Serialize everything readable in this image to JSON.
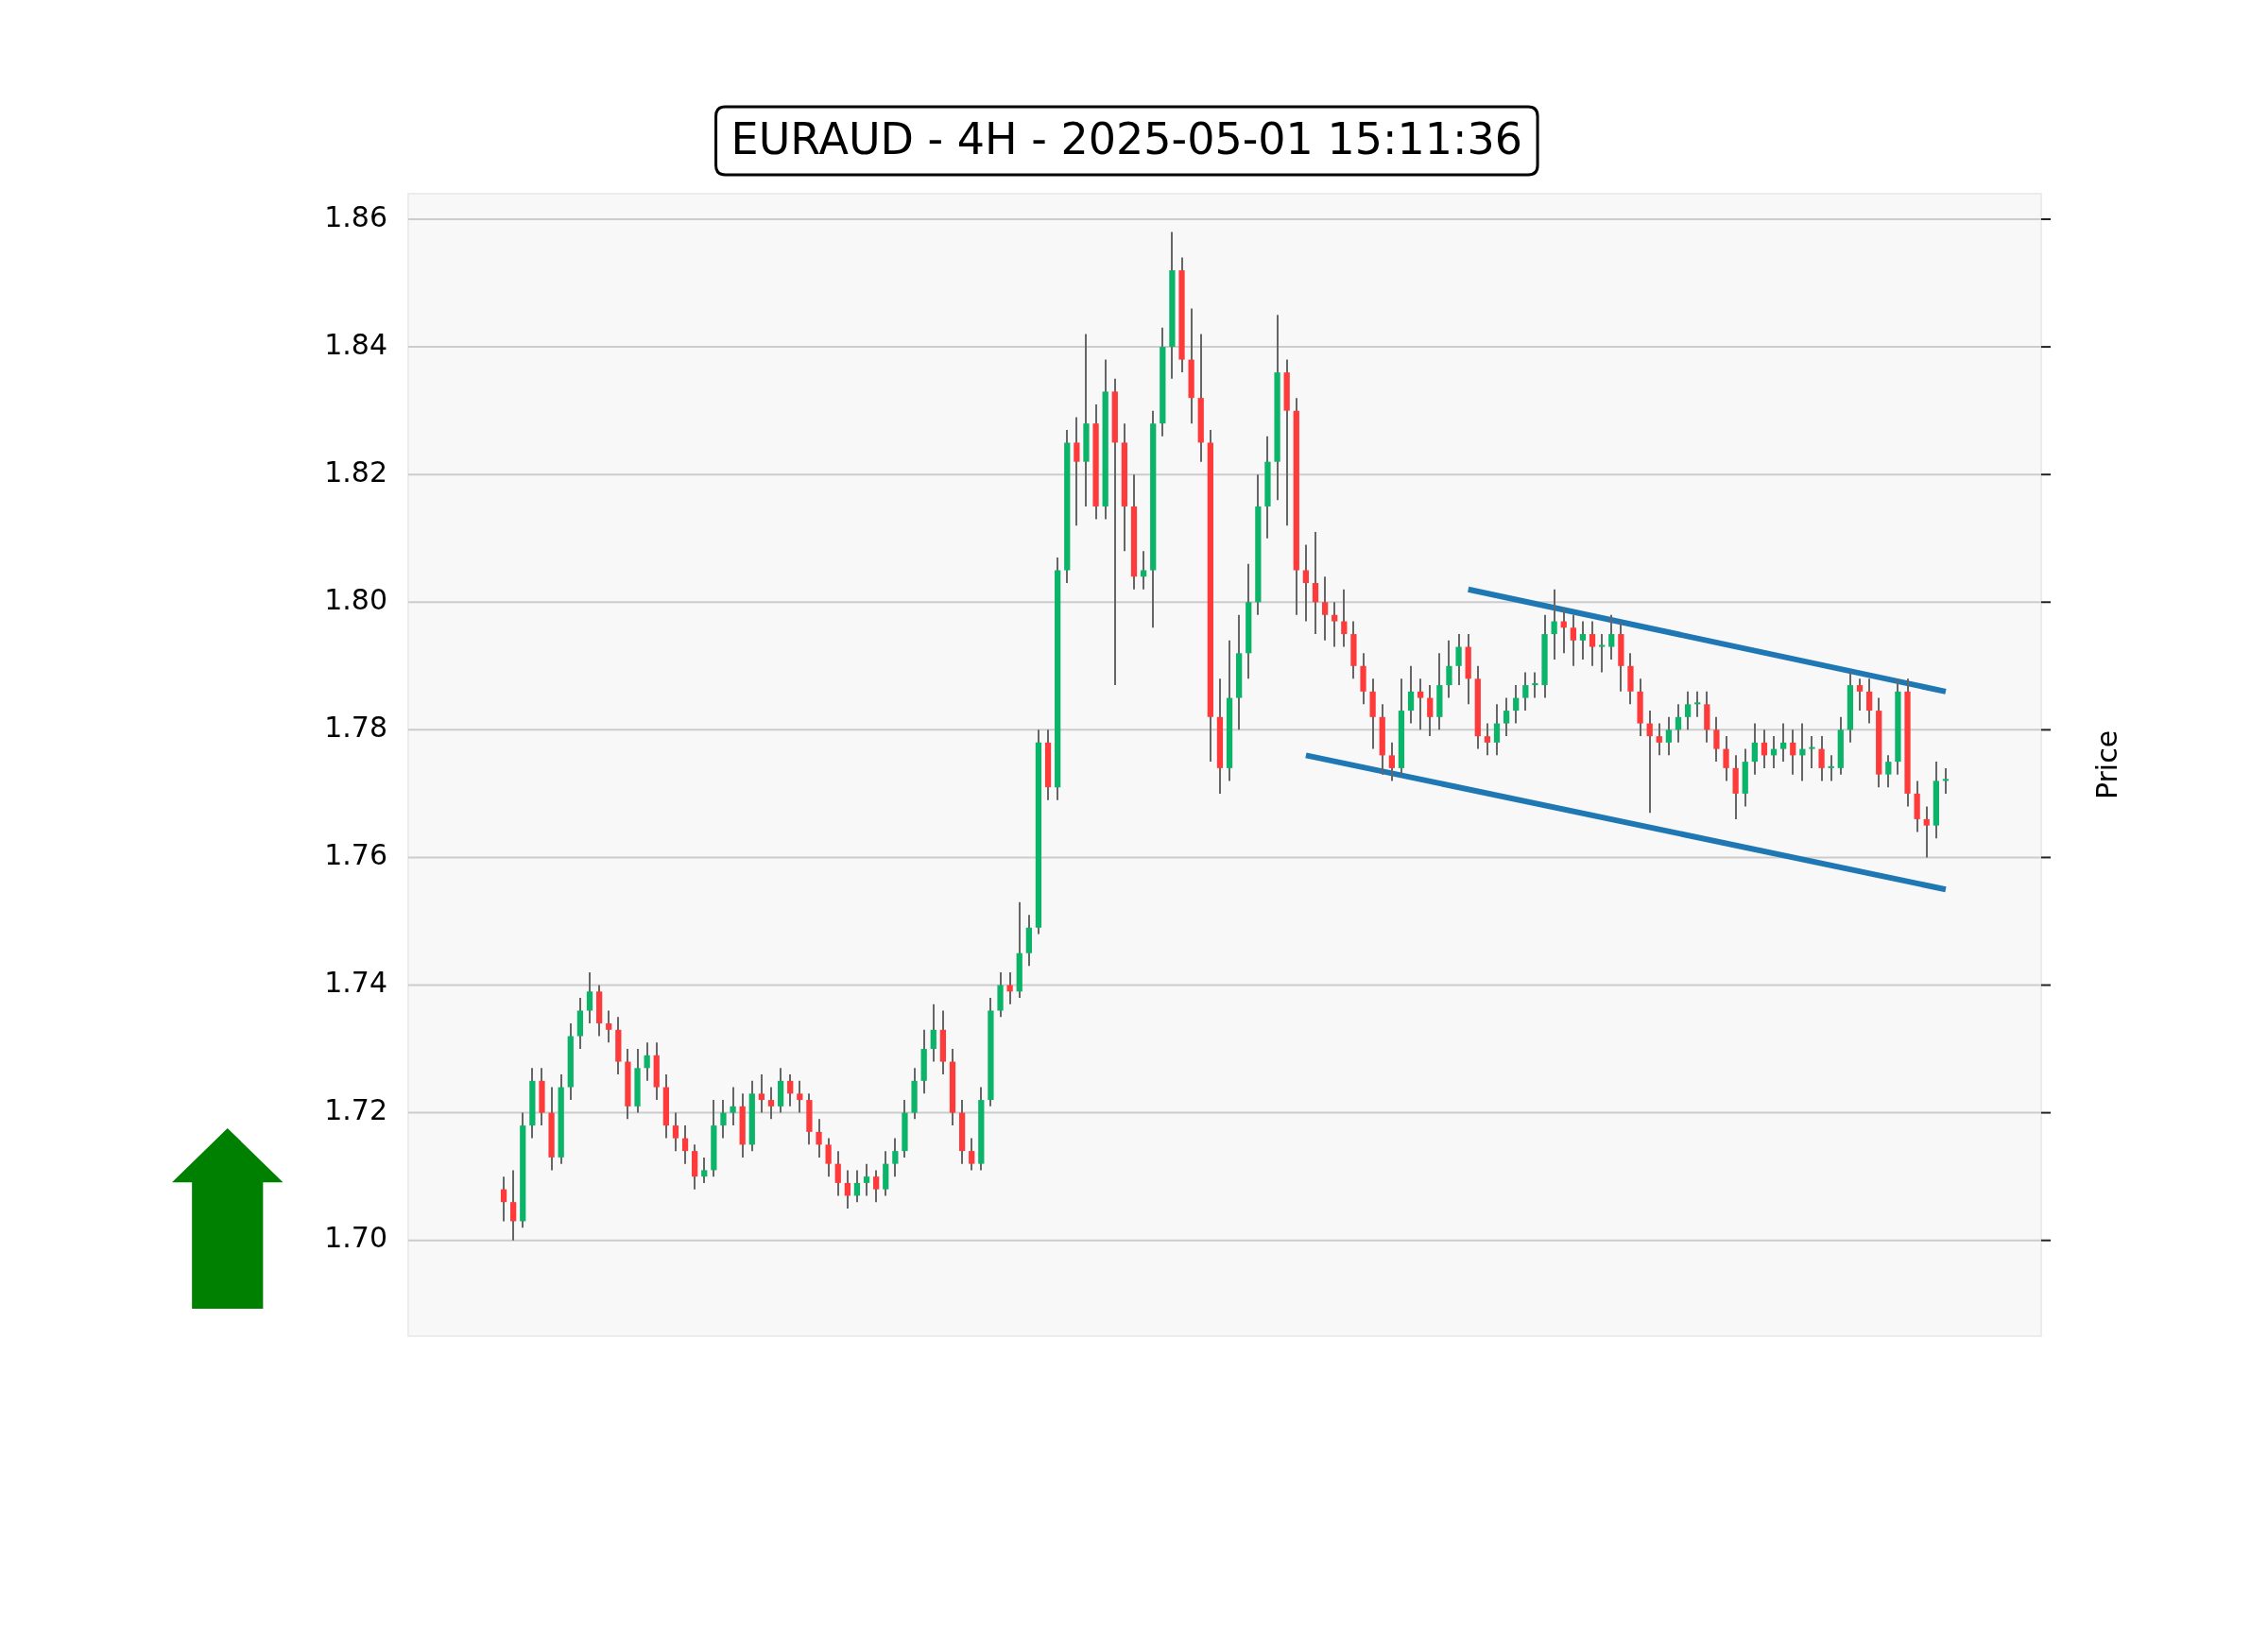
{
  "chart_data": {
    "type": "candlestick",
    "title": "EURAUD - 4H - 2025-05-01 15:11:36",
    "ylabel": "Price",
    "categories": [
      null,
      null,
      null,
      null,
      null,
      null,
      null,
      null,
      null,
      null,
      null,
      null,
      null,
      null,
      null,
      null,
      null,
      null,
      null,
      null,
      null,
      null,
      null,
      null,
      null,
      null,
      null,
      null,
      null,
      null,
      null,
      null,
      null,
      null,
      null,
      null,
      null,
      null,
      null,
      null,
      null,
      null,
      null,
      null,
      null,
      null,
      null,
      null,
      null,
      null,
      null,
      null,
      null,
      null,
      null,
      null,
      null,
      null,
      null,
      null,
      null,
      null,
      null,
      null,
      null,
      null,
      null,
      null,
      null,
      null,
      null,
      null,
      null,
      null,
      null,
      null,
      null,
      null,
      null,
      null,
      null,
      null,
      null,
      null,
      null,
      null,
      null,
      null,
      null,
      null,
      null,
      null,
      null,
      null,
      null,
      null,
      null,
      null,
      null,
      null,
      null,
      null,
      null,
      null,
      null,
      null,
      null,
      null,
      null,
      null,
      null,
      null,
      null,
      null,
      null,
      null,
      null,
      null,
      null,
      null,
      null,
      null,
      null,
      null,
      null,
      null,
      null,
      null,
      null,
      null,
      null,
      null,
      null,
      null,
      null,
      null,
      null,
      null,
      null,
      null,
      null,
      null,
      null,
      null,
      null,
      null,
      null,
      null,
      null,
      null,
      null,
      null
    ],
    "ohlc": [
      [
        1.708,
        1.71,
        1.703,
        1.706
      ],
      [
        1.706,
        1.711,
        1.7,
        1.703
      ],
      [
        1.703,
        1.72,
        1.702,
        1.718
      ],
      [
        1.718,
        1.727,
        1.716,
        1.725
      ],
      [
        1.725,
        1.727,
        1.718,
        1.72
      ],
      [
        1.72,
        1.724,
        1.711,
        1.713
      ],
      [
        1.713,
        1.726,
        1.712,
        1.724
      ],
      [
        1.724,
        1.734,
        1.722,
        1.732
      ],
      [
        1.732,
        1.738,
        1.73,
        1.736
      ],
      [
        1.736,
        1.742,
        1.734,
        1.739
      ],
      [
        1.739,
        1.74,
        1.732,
        1.734
      ],
      [
        1.734,
        1.736,
        1.731,
        1.733
      ],
      [
        1.733,
        1.735,
        1.726,
        1.728
      ],
      [
        1.728,
        1.73,
        1.719,
        1.721
      ],
      [
        1.721,
        1.73,
        1.72,
        1.727
      ],
      [
        1.727,
        1.731,
        1.725,
        1.729
      ],
      [
        1.729,
        1.731,
        1.722,
        1.724
      ],
      [
        1.724,
        1.726,
        1.716,
        1.718
      ],
      [
        1.718,
        1.72,
        1.714,
        1.716
      ],
      [
        1.716,
        1.718,
        1.712,
        1.714
      ],
      [
        1.714,
        1.715,
        1.708,
        1.71
      ],
      [
        1.71,
        1.713,
        1.709,
        1.711
      ],
      [
        1.711,
        1.722,
        1.71,
        1.718
      ],
      [
        1.718,
        1.722,
        1.716,
        1.72
      ],
      [
        1.72,
        1.724,
        1.718,
        1.721
      ],
      [
        1.721,
        1.723,
        1.713,
        1.715
      ],
      [
        1.715,
        1.725,
        1.714,
        1.723
      ],
      [
        1.723,
        1.726,
        1.72,
        1.722
      ],
      [
        1.722,
        1.724,
        1.719,
        1.721
      ],
      [
        1.721,
        1.727,
        1.72,
        1.725
      ],
      [
        1.725,
        1.726,
        1.721,
        1.723
      ],
      [
        1.723,
        1.725,
        1.72,
        1.722
      ],
      [
        1.722,
        1.723,
        1.715,
        1.717
      ],
      [
        1.717,
        1.719,
        1.713,
        1.715
      ],
      [
        1.715,
        1.716,
        1.71,
        1.712
      ],
      [
        1.712,
        1.714,
        1.707,
        1.709
      ],
      [
        1.709,
        1.711,
        1.705,
        1.707
      ],
      [
        1.707,
        1.711,
        1.706,
        1.709
      ],
      [
        1.709,
        1.712,
        1.707,
        1.71
      ],
      [
        1.71,
        1.711,
        1.706,
        1.708
      ],
      [
        1.708,
        1.714,
        1.707,
        1.712
      ],
      [
        1.712,
        1.716,
        1.71,
        1.714
      ],
      [
        1.714,
        1.722,
        1.713,
        1.72
      ],
      [
        1.72,
        1.727,
        1.719,
        1.725
      ],
      [
        1.725,
        1.733,
        1.723,
        1.73
      ],
      [
        1.73,
        1.737,
        1.728,
        1.733
      ],
      [
        1.733,
        1.736,
        1.726,
        1.728
      ],
      [
        1.728,
        1.73,
        1.718,
        1.72
      ],
      [
        1.72,
        1.722,
        1.712,
        1.714
      ],
      [
        1.714,
        1.716,
        1.711,
        1.712
      ],
      [
        1.712,
        1.724,
        1.711,
        1.722
      ],
      [
        1.722,
        1.738,
        1.721,
        1.736
      ],
      [
        1.736,
        1.742,
        1.735,
        1.74
      ],
      [
        1.74,
        1.742,
        1.737,
        1.739
      ],
      [
        1.739,
        1.753,
        1.738,
        1.745
      ],
      [
        1.745,
        1.751,
        1.743,
        1.749
      ],
      [
        1.749,
        1.78,
        1.748,
        1.778
      ],
      [
        1.778,
        1.78,
        1.769,
        1.771
      ],
      [
        1.771,
        1.807,
        1.769,
        1.805
      ],
      [
        1.805,
        1.827,
        1.803,
        1.825
      ],
      [
        1.825,
        1.829,
        1.812,
        1.822
      ],
      [
        1.822,
        1.842,
        1.815,
        1.828
      ],
      [
        1.828,
        1.831,
        1.813,
        1.815
      ],
      [
        1.815,
        1.838,
        1.813,
        1.833
      ],
      [
        1.833,
        1.835,
        1.787,
        1.825
      ],
      [
        1.825,
        1.828,
        1.808,
        1.815
      ],
      [
        1.815,
        1.82,
        1.802,
        1.804
      ],
      [
        1.804,
        1.808,
        1.802,
        1.805
      ],
      [
        1.805,
        1.83,
        1.796,
        1.828
      ],
      [
        1.828,
        1.843,
        1.826,
        1.84
      ],
      [
        1.84,
        1.858,
        1.835,
        1.852
      ],
      [
        1.852,
        1.854,
        1.836,
        1.838
      ],
      [
        1.838,
        1.846,
        1.828,
        1.832
      ],
      [
        1.832,
        1.842,
        1.822,
        1.825
      ],
      [
        1.825,
        1.827,
        1.775,
        1.782
      ],
      [
        1.782,
        1.788,
        1.77,
        1.774
      ],
      [
        1.774,
        1.794,
        1.772,
        1.785
      ],
      [
        1.785,
        1.798,
        1.78,
        1.792
      ],
      [
        1.792,
        1.806,
        1.788,
        1.8
      ],
      [
        1.8,
        1.82,
        1.798,
        1.815
      ],
      [
        1.815,
        1.826,
        1.81,
        1.822
      ],
      [
        1.822,
        1.845,
        1.816,
        1.836
      ],
      [
        1.836,
        1.838,
        1.812,
        1.83
      ],
      [
        1.83,
        1.832,
        1.798,
        1.805
      ],
      [
        1.805,
        1.809,
        1.797,
        1.803
      ],
      [
        1.803,
        1.811,
        1.795,
        1.8
      ],
      [
        1.8,
        1.804,
        1.794,
        1.798
      ],
      [
        1.798,
        1.8,
        1.793,
        1.797
      ],
      [
        1.797,
        1.802,
        1.793,
        1.795
      ],
      [
        1.795,
        1.797,
        1.788,
        1.79
      ],
      [
        1.79,
        1.792,
        1.784,
        1.786
      ],
      [
        1.786,
        1.788,
        1.777,
        1.782
      ],
      [
        1.782,
        1.784,
        1.773,
        1.776
      ],
      [
        1.776,
        1.778,
        1.772,
        1.774
      ],
      [
        1.774,
        1.788,
        1.773,
        1.783
      ],
      [
        1.783,
        1.79,
        1.781,
        1.786
      ],
      [
        1.786,
        1.788,
        1.78,
        1.785
      ],
      [
        1.785,
        1.787,
        1.779,
        1.782
      ],
      [
        1.782,
        1.792,
        1.78,
        1.787
      ],
      [
        1.787,
        1.794,
        1.785,
        1.79
      ],
      [
        1.79,
        1.795,
        1.787,
        1.793
      ],
      [
        1.793,
        1.795,
        1.784,
        1.788
      ],
      [
        1.788,
        1.79,
        1.777,
        1.779
      ],
      [
        1.779,
        1.781,
        1.776,
        1.778
      ],
      [
        1.778,
        1.784,
        1.776,
        1.781
      ],
      [
        1.781,
        1.785,
        1.779,
        1.783
      ],
      [
        1.783,
        1.787,
        1.781,
        1.785
      ],
      [
        1.785,
        1.789,
        1.783,
        1.787
      ],
      [
        1.787,
        1.789,
        1.785,
        1.787
      ],
      [
        1.787,
        1.798,
        1.785,
        1.795
      ],
      [
        1.795,
        1.802,
        1.791,
        1.797
      ],
      [
        1.797,
        1.799,
        1.792,
        1.796
      ],
      [
        1.796,
        1.798,
        1.79,
        1.794
      ],
      [
        1.794,
        1.797,
        1.791,
        1.795
      ],
      [
        1.795,
        1.797,
        1.79,
        1.793
      ],
      [
        1.793,
        1.795,
        1.789,
        1.793
      ],
      [
        1.793,
        1.798,
        1.791,
        1.795
      ],
      [
        1.795,
        1.797,
        1.786,
        1.79
      ],
      [
        1.79,
        1.792,
        1.784,
        1.786
      ],
      [
        1.786,
        1.788,
        1.779,
        1.781
      ],
      [
        1.781,
        1.783,
        1.767,
        1.779
      ],
      [
        1.779,
        1.781,
        1.776,
        1.778
      ],
      [
        1.778,
        1.782,
        1.776,
        1.78
      ],
      [
        1.78,
        1.784,
        1.778,
        1.782
      ],
      [
        1.782,
        1.786,
        1.78,
        1.784
      ],
      [
        1.784,
        1.786,
        1.782,
        1.784
      ],
      [
        1.784,
        1.786,
        1.778,
        1.78
      ],
      [
        1.78,
        1.782,
        1.775,
        1.777
      ],
      [
        1.777,
        1.779,
        1.772,
        1.774
      ],
      [
        1.774,
        1.776,
        1.766,
        1.77
      ],
      [
        1.77,
        1.777,
        1.768,
        1.775
      ],
      [
        1.775,
        1.781,
        1.773,
        1.778
      ],
      [
        1.778,
        1.78,
        1.774,
        1.776
      ],
      [
        1.776,
        1.779,
        1.774,
        1.777
      ],
      [
        1.777,
        1.781,
        1.775,
        1.778
      ],
      [
        1.778,
        1.78,
        1.773,
        1.776
      ],
      [
        1.776,
        1.781,
        1.772,
        1.777
      ],
      [
        1.777,
        1.779,
        1.774,
        1.777
      ],
      [
        1.777,
        1.779,
        1.772,
        1.774
      ],
      [
        1.774,
        1.776,
        1.772,
        1.774
      ],
      [
        1.774,
        1.782,
        1.773,
        1.78
      ],
      [
        1.78,
        1.789,
        1.778,
        1.787
      ],
      [
        1.787,
        1.788,
        1.783,
        1.786
      ],
      [
        1.786,
        1.788,
        1.781,
        1.783
      ],
      [
        1.783,
        1.785,
        1.771,
        1.773
      ],
      [
        1.773,
        1.776,
        1.771,
        1.775
      ],
      [
        1.775,
        1.788,
        1.773,
        1.786
      ],
      [
        1.786,
        1.788,
        1.768,
        1.77
      ],
      [
        1.77,
        1.772,
        1.764,
        1.766
      ],
      [
        1.766,
        1.768,
        1.76,
        1.765
      ],
      [
        1.765,
        1.775,
        1.763,
        1.772
      ],
      [
        1.772,
        1.774,
        1.77,
        1.772
      ]
    ],
    "series": [
      {
        "type": "line",
        "color": "#1f77b4",
        "values": [
          null,
          null,
          null,
          null,
          null,
          null,
          null,
          null,
          null,
          null,
          null,
          null,
          null,
          null,
          null,
          null,
          null,
          null,
          null,
          null,
          null,
          null,
          null,
          null,
          null,
          null,
          null,
          null,
          null,
          null,
          null,
          null,
          null,
          null,
          null,
          null,
          null,
          null,
          null,
          null,
          null,
          null,
          null,
          null,
          null,
          null,
          null,
          null,
          null,
          null,
          null,
          null,
          null,
          null,
          null,
          null,
          null,
          null,
          null,
          null,
          null,
          null,
          null,
          null,
          null,
          null,
          null,
          null,
          null,
          null,
          null,
          null,
          null,
          null,
          null,
          null,
          null,
          null,
          null,
          null,
          null,
          null,
          null,
          null,
          null,
          null,
          null,
          null,
          null,
          null,
          null,
          null,
          null,
          null,
          null,
          null,
          null,
          null,
          null,
          null,
          null,
          1.802,
          null,
          null,
          null,
          null,
          null,
          null,
          null,
          null,
          null,
          null,
          null,
          null,
          null,
          null,
          null,
          null,
          null,
          null,
          null,
          null,
          null,
          null,
          null,
          null,
          null,
          null,
          null,
          null,
          null,
          null,
          null,
          null,
          null,
          null,
          null,
          null,
          null,
          null,
          null,
          null,
          null,
          null,
          null,
          null,
          null,
          null,
          null,
          null,
          null,
          1.786
        ]
      },
      {
        "type": "line",
        "color": "#1f77b4",
        "values": [
          null,
          null,
          null,
          null,
          null,
          null,
          null,
          null,
          null,
          null,
          null,
          null,
          null,
          null,
          null,
          null,
          null,
          null,
          null,
          null,
          null,
          null,
          null,
          null,
          null,
          null,
          null,
          null,
          null,
          null,
          null,
          null,
          null,
          null,
          null,
          null,
          null,
          null,
          null,
          null,
          null,
          null,
          null,
          null,
          null,
          null,
          null,
          null,
          null,
          null,
          null,
          null,
          null,
          null,
          null,
          null,
          null,
          null,
          null,
          null,
          null,
          null,
          null,
          null,
          null,
          null,
          null,
          null,
          null,
          null,
          null,
          null,
          null,
          null,
          null,
          null,
          null,
          null,
          null,
          null,
          null,
          null,
          null,
          null,
          1.776,
          null,
          null,
          null,
          null,
          null,
          null,
          null,
          null,
          null,
          null,
          null,
          null,
          null,
          null,
          null,
          null,
          null,
          null,
          null,
          null,
          null,
          null,
          null,
          null,
          null,
          null,
          null,
          null,
          null,
          null,
          null,
          null,
          null,
          null,
          null,
          null,
          null,
          null,
          null,
          null,
          null,
          null,
          null,
          null,
          null,
          null,
          null,
          null,
          null,
          null,
          null,
          null,
          null,
          null,
          null,
          null,
          null,
          null,
          null,
          null,
          null,
          null,
          null,
          null,
          null,
          null,
          1.755
        ]
      }
    ],
    "ylim": [
      1.685,
      1.864
    ],
    "yticks": [
      {
        "value": 1.7,
        "label": "1.70"
      },
      {
        "value": 1.72,
        "label": "1.72"
      },
      {
        "value": 1.74,
        "label": "1.74"
      },
      {
        "value": 1.76,
        "label": "1.76"
      },
      {
        "value": 1.78,
        "label": "1.78"
      },
      {
        "value": 1.8,
        "label": "1.80"
      },
      {
        "value": 1.82,
        "label": "1.82"
      },
      {
        "value": 1.84,
        "label": "1.84"
      },
      {
        "value": 1.86,
        "label": "1.86"
      }
    ],
    "grid": "y",
    "tick_labels": "y"
  }
}
